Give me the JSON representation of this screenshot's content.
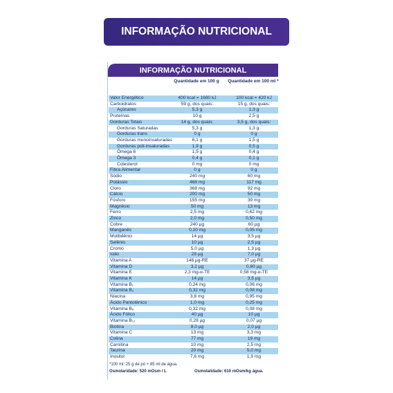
{
  "banner": {
    "title": "INFORMAÇÃO NUTRICIONAL"
  },
  "label": {
    "title": "INFORMAÇÃO NUTRICIONAL",
    "columns": [
      "Quantidade em 100 g",
      "Quantidade em 100 ml *"
    ],
    "rows": [
      [
        "Valor Energético",
        "400 kcal = 1680 kJ",
        "100 kcal = 420 kJ"
      ],
      [
        "Carboidratos",
        "59 g, dos quais:",
        "15 g, dos quais:"
      ],
      [
        "Açúcares",
        "5,3 g",
        "1,3 g"
      ],
      [
        "Proteínas",
        "10 g",
        "2,5 g"
      ],
      [
        "Gorduras Totais",
        "14 g, dos quais:",
        "3,5 g, dos quais:"
      ],
      [
        "Gorduras Saturadas",
        "5,3 g",
        "1,3 g"
      ],
      [
        "Gorduras trans",
        "0 g",
        "0 g"
      ],
      [
        "Gorduras monoinsaturadas",
        "6,1 g",
        "1,5 g"
      ],
      [
        "Gorduras poli-insaturadas",
        "1,9 g",
        "0,5 g"
      ],
      [
        "Ômega 6",
        "1,5 g",
        "0,4 g"
      ],
      [
        "Ômega 3",
        "0,4 g",
        "0,1 g"
      ],
      [
        "Colesterol",
        "0 mg",
        "0 mg"
      ],
      [
        "Fibra Alimentar",
        "0 g",
        "0 g"
      ],
      [
        "Sódio",
        "240 mg",
        "60 mg"
      ],
      [
        "Potássio",
        "468 mg",
        "117 mg"
      ],
      [
        "Cloro",
        "368 mg",
        "92 mg"
      ],
      [
        "Cálcio",
        "200 mg",
        "50 mg"
      ],
      [
        "Fósforo",
        "155 mg",
        "39 mg"
      ],
      [
        "Magnésio",
        "50 mg",
        "13 mg"
      ],
      [
        "Ferro",
        "2,5 mg",
        "0,62 mg"
      ],
      [
        "Zinco",
        "2,0 mg",
        "0,50 mg"
      ],
      [
        "Cobre",
        "240 µg",
        "60 µg"
      ],
      [
        "Manganês",
        "0,20 mg",
        "0,05 mg"
      ],
      [
        "Molibdênio",
        "14 µg",
        "3,5 µg"
      ],
      [
        "Selênio",
        "10 µg",
        "2,5 µg"
      ],
      [
        "Cromo",
        "5,0 µg",
        "1,3 µg"
      ],
      [
        "Iodo",
        "28 µg",
        "7,0 µg"
      ],
      [
        "Vitamina A",
        "148 µg-RE",
        "37 µg-RE"
      ],
      [
        "Vitamina D",
        "3,2 µg",
        "0,80 µg"
      ],
      [
        "Vitamina E",
        "2,3 mg-α-TE",
        "0,58 mg-α-TE"
      ],
      [
        "Vitamina K",
        "14 µg",
        "3,5 µg"
      ],
      [
        "Vitamina B₁",
        "0,24 mg",
        "0,06 mg"
      ],
      [
        "Vitamina B₂",
        "0,32 mg",
        "0,08 mg"
      ],
      [
        "Niacina",
        "3,8 mg",
        "0,95 mg"
      ],
      [
        "Ácido Pantotênico",
        "1,0 mg",
        "0,25 mg"
      ],
      [
        "Vitamina B₆",
        "0,32 mg",
        "0,08 mg"
      ],
      [
        "Ácido Fólico",
        "40 µg",
        "10 µg"
      ],
      [
        "Vitamina B₁₂",
        "0,28 µg",
        "0,07 µg"
      ],
      [
        "Biotina",
        "8,0 µg",
        "2,0 µg"
      ],
      [
        "Vitamina C",
        "13 mg",
        "3,3 mg"
      ],
      [
        "Colina",
        "77 mg",
        "19 mg"
      ],
      [
        "Carnitina",
        "10 mg",
        "2,5 mg"
      ],
      [
        "Taurina",
        "20 mg",
        "5,0 mg"
      ],
      [
        "Inositol",
        "7,6 mg",
        "1,9 mg"
      ]
    ],
    "footnote": "*100 ml: 25 g de pó + 85 ml de água.",
    "osmolarity": "Osmolaridade: 520 mOsm / L",
    "osmolality": "Osmolalidade: 610 mOsm/kg água."
  }
}
